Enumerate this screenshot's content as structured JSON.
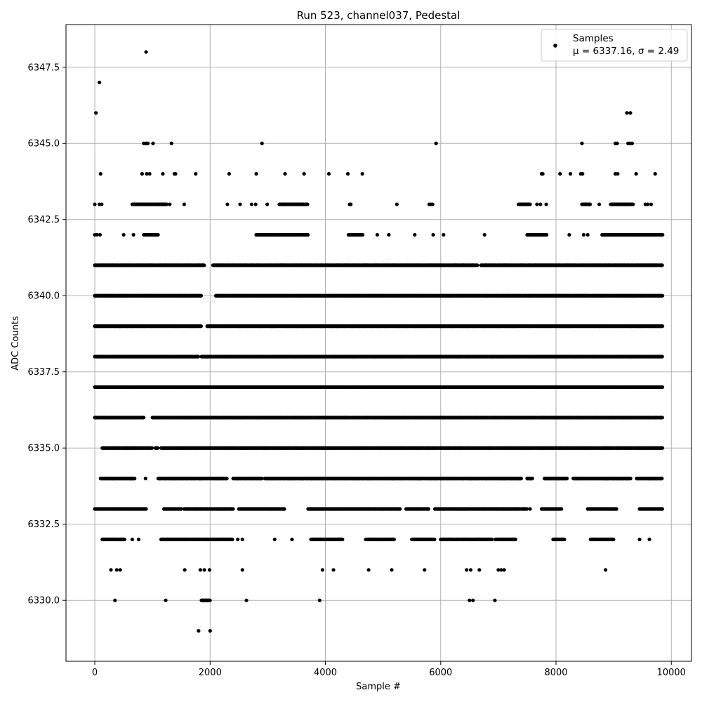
{
  "chart_data": {
    "type": "scatter",
    "title": "Run 523, channel037, Pedestal",
    "xlabel": "Sample #",
    "ylabel": "ADC Counts",
    "xlim": [
      -500,
      10350
    ],
    "ylim": [
      6328.0,
      6348.9
    ],
    "x_ticks": [
      0,
      2000,
      4000,
      6000,
      8000,
      10000
    ],
    "x_tick_labels": [
      "0",
      "2000",
      "4000",
      "6000",
      "8000",
      "10000"
    ],
    "y_ticks": [
      6330.0,
      6332.5,
      6335.0,
      6337.5,
      6340.0,
      6342.5,
      6345.0,
      6347.5
    ],
    "y_tick_labels": [
      "6330.0",
      "6332.5",
      "6335.0",
      "6337.5",
      "6340.0",
      "6342.5",
      "6345.0",
      "6347.5"
    ],
    "grid": true,
    "legend_position": "top-right",
    "marker_color": "#000000",
    "series": [
      {
        "name": "Samples",
        "stats_label": "μ = 6337.16, σ = 2.49",
        "n_samples": 9850,
        "density_by_level": [
          {
            "y": 6329,
            "ranges": [],
            "points": [
              1800,
              2000
            ]
          },
          {
            "y": 6330,
            "ranges": [
              [
                1850,
                2000
              ]
            ],
            "points": [
              350,
              1230,
              2630,
              3900,
              6500,
              6560,
              6940
            ]
          },
          {
            "y": 6331,
            "ranges": [],
            "points": [
              280,
              380,
              440,
              1560,
              1830,
              1900,
              1990,
              2560,
              3950,
              4140,
              4750,
              5150,
              5720,
              6450,
              6520,
              6670,
              7000,
              7050,
              7100,
              8860
            ]
          },
          {
            "y": 6332,
            "ranges": [
              [
                130,
                520
              ],
              [
                1150,
                2400
              ],
              [
                3750,
                4300
              ],
              [
                4700,
                5200
              ],
              [
                5500,
                5900
              ],
              [
                6000,
                6900
              ],
              [
                6950,
                7300
              ],
              [
                7950,
                8150
              ],
              [
                8600,
                9000
              ]
            ],
            "points": [
              650,
              760,
              2480,
              2560,
              3120,
              3420,
              9450,
              9620
            ]
          },
          {
            "y": 6333,
            "ranges": [
              [
                0,
                900
              ],
              [
                1200,
                1500
              ],
              [
                1550,
                2400
              ],
              [
                2500,
                3300
              ],
              [
                3700,
                5300
              ],
              [
                5400,
                5800
              ],
              [
                5900,
                7500
              ],
              [
                7750,
                8100
              ],
              [
                8550,
                9050
              ],
              [
                9450,
                9850
              ]
            ],
            "points": [
              1750,
              7550
            ]
          },
          {
            "y": 6334,
            "ranges": [
              [
                100,
                700
              ],
              [
                1100,
                2300
              ],
              [
                2400,
                2900
              ],
              [
                2950,
                7400
              ],
              [
                7500,
                7600
              ],
              [
                7800,
                8200
              ],
              [
                8300,
                9300
              ],
              [
                9400,
                9850
              ]
            ],
            "points": [
              880
            ]
          },
          {
            "y": 6335,
            "ranges": [
              [
                130,
                1000
              ],
              [
                1050,
                1100
              ],
              [
                1150,
                9850
              ]
            ],
            "points": []
          },
          {
            "y": 6336,
            "ranges": [
              [
                0,
                850
              ],
              [
                1000,
                9850
              ]
            ],
            "points": []
          },
          {
            "y": 6337,
            "ranges": [
              [
                0,
                9850
              ]
            ],
            "points": []
          },
          {
            "y": 6338,
            "ranges": [
              [
                0,
                1800
              ],
              [
                1850,
                9850
              ]
            ],
            "points": []
          },
          {
            "y": 6339,
            "ranges": [
              [
                0,
                1850
              ],
              [
                1950,
                9850
              ]
            ],
            "points": []
          },
          {
            "y": 6340,
            "ranges": [
              [
                0,
                1850
              ],
              [
                2100,
                9850
              ]
            ],
            "points": []
          },
          {
            "y": 6341,
            "ranges": [
              [
                0,
                1900
              ],
              [
                2050,
                6650
              ],
              [
                6700,
                9850
              ]
            ],
            "points": []
          },
          {
            "y": 6342,
            "ranges": [
              [
                850,
                1100
              ],
              [
                2800,
                3700
              ],
              [
                4400,
                4650
              ],
              [
                7500,
                7850
              ],
              [
                8800,
                9850
              ]
            ],
            "points": [
              0,
              40,
              90,
              500,
              670,
              4900,
              5100,
              5550,
              5870,
              6050,
              6760,
              8230,
              8480,
              8550
            ]
          },
          {
            "y": 6343,
            "ranges": [
              [
                650,
                1250
              ],
              [
                3200,
                3700
              ],
              [
                7350,
                7550
              ],
              [
                8450,
                8600
              ],
              [
                8950,
                9350
              ]
            ],
            "points": [
              0,
              80,
              120,
              1300,
              1550,
              2300,
              2520,
              2720,
              2790,
              2990,
              4420,
              4440,
              5240,
              5800,
              5830,
              5860,
              7670,
              7730,
              7830,
              8570,
              8750,
              9550,
              9590,
              9650
            ]
          },
          {
            "y": 6344,
            "ranges": [],
            "points": [
              100,
              820,
              900,
              950,
              1180,
              1380,
              1400,
              1750,
              2330,
              2800,
              3300,
              3630,
              4060,
              4390,
              4640,
              7750,
              7770,
              8070,
              8250,
              8430,
              8460,
              9030,
              9070,
              9390,
              9720
            ]
          },
          {
            "y": 6345,
            "ranges": [],
            "points": [
              850,
              890,
              920,
              1010,
              1330,
              2900,
              5920,
              8450,
              9030,
              9060,
              9250,
              9280,
              9320
            ]
          },
          {
            "y": 6346,
            "ranges": [],
            "points": [
              20,
              9230,
              9290
            ]
          },
          {
            "y": 6347,
            "ranges": [],
            "points": [
              80
            ]
          },
          {
            "y": 6348,
            "ranges": [],
            "points": [
              890
            ]
          }
        ]
      }
    ]
  }
}
